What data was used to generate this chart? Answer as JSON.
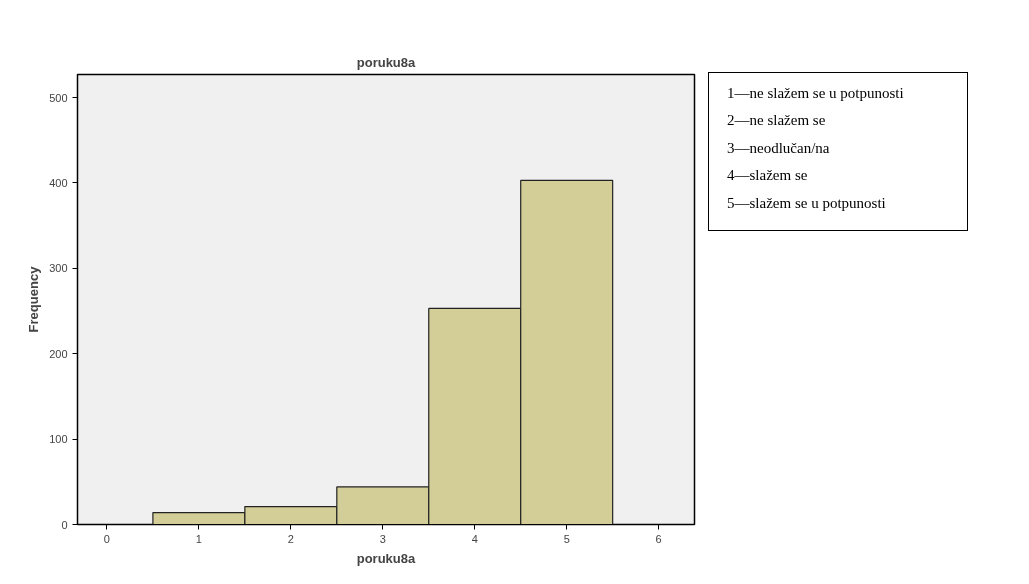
{
  "chart_data": {
    "type": "histogram",
    "title": "poruku8a",
    "xlabel": "poruku8a",
    "ylabel": "Frequency",
    "bins": [
      0.5,
      1.5,
      2.5,
      3.5,
      4.5,
      5.5
    ],
    "values": [
      14,
      21,
      44,
      253,
      403
    ],
    "color": "#d3ce97",
    "xlim": [
      -0.32,
      6.39
    ],
    "xticks": [
      0,
      1,
      2,
      3,
      4,
      5,
      6
    ],
    "ylim": [
      0,
      527
    ],
    "yticks": [
      0,
      100,
      200,
      300,
      400,
      500
    ],
    "grid": false,
    "annotations": [
      "1—ne slažem se u potpunosti",
      "2—ne slažem se",
      "3—neodlučan/na",
      "4—slažem se",
      "5—slažem se u potpunosti"
    ]
  }
}
